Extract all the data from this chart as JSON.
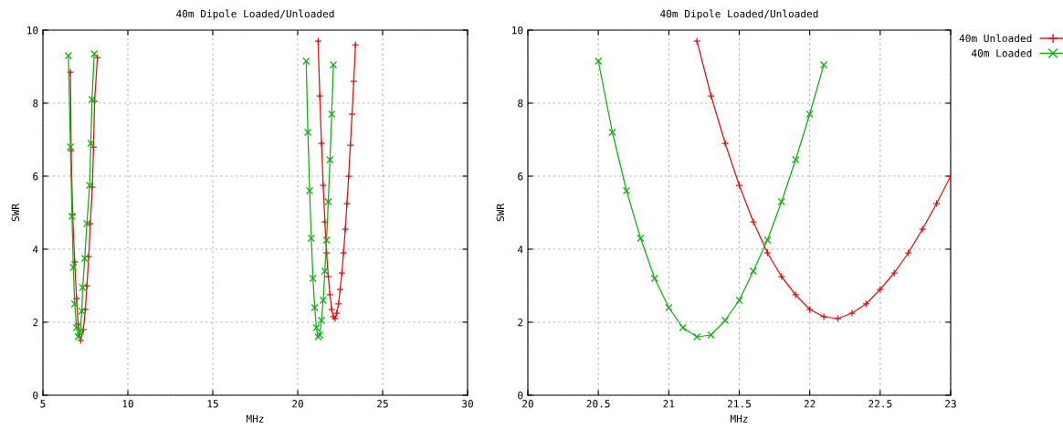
{
  "chart_data": [
    {
      "type": "line",
      "title": "40m Dipole Loaded/Unloaded",
      "xlabel": "MHz",
      "ylabel": "SWR",
      "xlim": [
        5,
        30
      ],
      "xticks": [
        5,
        10,
        15,
        20,
        25,
        30
      ],
      "ylim": [
        0,
        10
      ],
      "yticks": [
        0,
        2,
        4,
        6,
        8,
        10
      ],
      "grid": true,
      "legend": false,
      "series": [
        {
          "color": "#e01010",
          "marker": "plus",
          "x": [
            6.62,
            6.66,
            6.75,
            6.87,
            6.98,
            7.07,
            7.22,
            7.38,
            7.5,
            7.59,
            7.7,
            7.79,
            7.91,
            7.98,
            8.04,
            8.21,
            null,
            21.2,
            21.3,
            21.4,
            21.5,
            21.6,
            21.7,
            21.8,
            21.9,
            22.0,
            22.1,
            22.2,
            22.3,
            22.4,
            22.5,
            22.6,
            22.7,
            22.8,
            22.9,
            23.0,
            23.1,
            23.2,
            23.3,
            23.4
          ],
          "values": [
            8.85,
            6.7,
            4.95,
            3.65,
            2.65,
            1.95,
            1.5,
            1.8,
            2.35,
            3.0,
            3.8,
            4.7,
            5.7,
            6.8,
            8.05,
            9.25,
            null,
            9.7,
            8.2,
            6.9,
            5.75,
            4.75,
            3.9,
            3.25,
            2.75,
            2.35,
            2.15,
            2.1,
            2.25,
            2.5,
            2.9,
            3.35,
            3.9,
            4.55,
            5.25,
            6.0,
            6.85,
            7.7,
            8.6,
            9.6
          ]
        },
        {
          "color": "#10b010",
          "marker": "cross",
          "x": [
            6.5,
            6.62,
            6.71,
            6.79,
            6.87,
            6.98,
            7.08,
            7.2,
            7.29,
            7.34,
            7.46,
            7.59,
            7.75,
            7.82,
            7.89,
            8.02,
            null,
            20.5,
            20.6,
            20.7,
            20.8,
            20.9,
            21.0,
            21.1,
            21.2,
            21.3,
            21.4,
            21.5,
            21.6,
            21.7,
            21.8,
            21.9,
            22.0,
            22.1
          ],
          "values": [
            9.3,
            6.8,
            4.9,
            3.5,
            2.5,
            1.85,
            1.6,
            1.75,
            2.3,
            2.95,
            3.75,
            4.7,
            5.75,
            6.9,
            8.1,
            9.35,
            null,
            9.15,
            7.2,
            5.6,
            4.3,
            3.2,
            2.4,
            1.85,
            1.6,
            1.65,
            2.05,
            2.6,
            3.4,
            4.25,
            5.3,
            6.45,
            7.7,
            9.05
          ]
        }
      ]
    },
    {
      "type": "line",
      "title": "40m Dipole Loaded/Unloaded",
      "xlabel": "MHz",
      "ylabel": "SWR",
      "xlim": [
        20,
        23
      ],
      "xticks": [
        20,
        20.5,
        21,
        21.5,
        22,
        22.5,
        23
      ],
      "ylim": [
        0,
        10
      ],
      "yticks": [
        0,
        2,
        4,
        6,
        8,
        10
      ],
      "grid": true,
      "legend": "top right",
      "series": [
        {
          "name": "40m Unloaded",
          "color": "#e01010",
          "marker": "plus",
          "x": [
            21.2,
            21.3,
            21.4,
            21.5,
            21.6,
            21.7,
            21.8,
            21.9,
            22.0,
            22.1,
            22.2,
            22.3,
            22.4,
            22.5,
            22.6,
            22.7,
            22.8,
            22.9,
            23.0
          ],
          "values": [
            9.7,
            8.2,
            6.9,
            5.75,
            4.75,
            3.9,
            3.25,
            2.75,
            2.35,
            2.15,
            2.1,
            2.25,
            2.5,
            2.9,
            3.35,
            3.9,
            4.55,
            5.25,
            6.0
          ]
        },
        {
          "name": "40m Loaded",
          "color": "#10b010",
          "marker": "cross",
          "x": [
            20.5,
            20.6,
            20.7,
            20.8,
            20.9,
            21.0,
            21.1,
            21.2,
            21.3,
            21.4,
            21.5,
            21.6,
            21.7,
            21.8,
            21.9,
            22.0,
            22.1
          ],
          "values": [
            9.15,
            7.2,
            5.6,
            4.3,
            3.2,
            2.4,
            1.85,
            1.6,
            1.65,
            2.05,
            2.6,
            3.4,
            4.25,
            5.3,
            6.45,
            7.7,
            9.05
          ]
        }
      ]
    }
  ]
}
